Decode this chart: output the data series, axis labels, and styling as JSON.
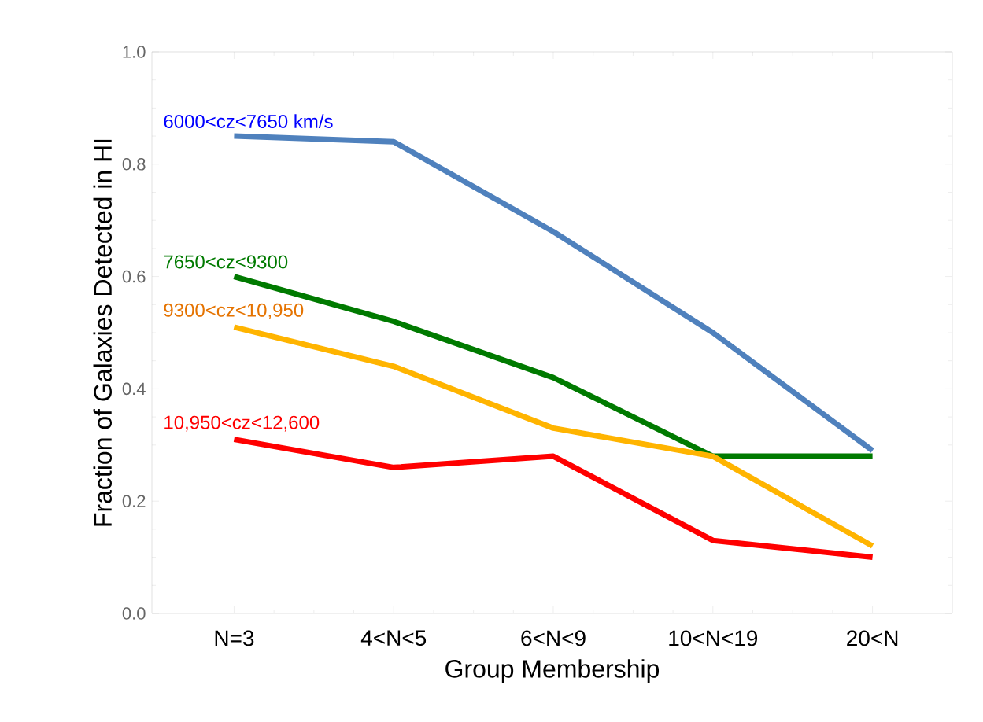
{
  "chart_data": {
    "type": "line",
    "xlabel": "Group Membership",
    "ylabel": "Fraction of Galaxies Detected in HI",
    "categories": [
      "N=3",
      "4<N<5",
      "6<N<9",
      "10<N<19",
      "20<N"
    ],
    "series": [
      {
        "name": "6000<cz<7650 km/s",
        "color": "#4f81bd",
        "values": [
          0.85,
          0.84,
          0.68,
          0.5,
          0.29
        ]
      },
      {
        "name": "7650<cz<9300",
        "color": "#007a00",
        "values": [
          0.6,
          0.52,
          0.42,
          0.28,
          0.28
        ]
      },
      {
        "name": "9300<cz<10,950",
        "color": "#ffb400",
        "values": [
          0.51,
          0.44,
          0.33,
          0.28,
          0.12
        ]
      },
      {
        "name": "10,950<cz<12,600",
        "color": "#ff0000",
        "values": [
          0.31,
          0.26,
          0.28,
          0.13,
          0.1
        ]
      }
    ],
    "ylim": [
      0,
      1
    ],
    "yticks": [
      {
        "value": 0,
        "label": "0.0"
      },
      {
        "value": 0.2,
        "label": "0.2"
      },
      {
        "value": 0.4,
        "label": "0.4"
      },
      {
        "value": 0.6,
        "label": "0.6"
      },
      {
        "value": 0.8,
        "label": "0.8"
      },
      {
        "value": 1,
        "label": "1.0"
      }
    ],
    "legend": false,
    "marker": "none",
    "line_style": "solid",
    "grid": false
  }
}
